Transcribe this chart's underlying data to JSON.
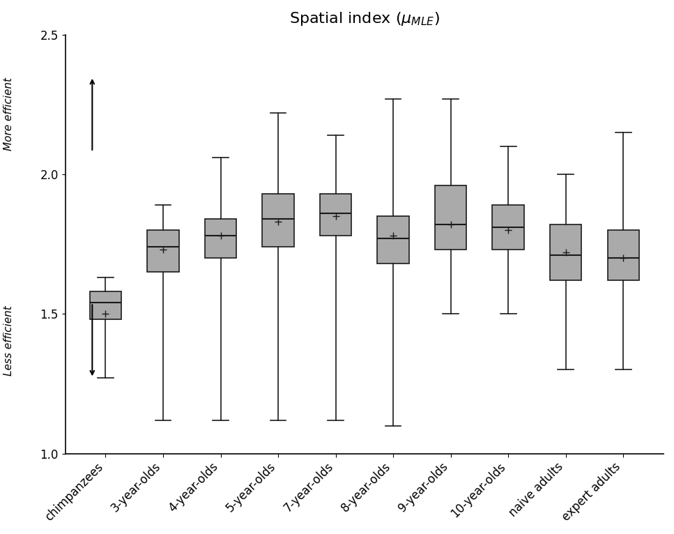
{
  "title": "Spatial index ($\\mu_{MLE}$)",
  "categories": [
    "chimpanzees",
    "3-year-olds",
    "4-year-olds",
    "5-year-olds",
    "7-year-olds",
    "8-year-olds",
    "9-year-olds",
    "10-year-olds",
    "naive adults",
    "expert adults"
  ],
  "box_data": [
    {
      "whislo": 1.27,
      "q1": 1.48,
      "med": 1.54,
      "q3": 1.58,
      "whishi": 1.63,
      "mean": 1.5
    },
    {
      "whislo": 1.12,
      "q1": 1.65,
      "med": 1.74,
      "q3": 1.8,
      "whishi": 1.89,
      "mean": 1.73
    },
    {
      "whislo": 1.12,
      "q1": 1.7,
      "med": 1.78,
      "q3": 1.84,
      "whishi": 2.06,
      "mean": 1.78
    },
    {
      "whislo": 1.12,
      "q1": 1.74,
      "med": 1.84,
      "q3": 1.93,
      "whishi": 2.22,
      "mean": 1.83
    },
    {
      "whislo": 1.12,
      "q1": 1.78,
      "med": 1.86,
      "q3": 1.93,
      "whishi": 2.14,
      "mean": 1.85
    },
    {
      "whislo": 1.1,
      "q1": 1.68,
      "med": 1.77,
      "q3": 1.85,
      "whishi": 2.27,
      "mean": 1.78
    },
    {
      "whislo": 1.5,
      "q1": 1.73,
      "med": 1.82,
      "q3": 1.96,
      "whishi": 2.27,
      "mean": 1.82
    },
    {
      "whislo": 1.5,
      "q1": 1.73,
      "med": 1.81,
      "q3": 1.89,
      "whishi": 2.1,
      "mean": 1.8
    },
    {
      "whislo": 1.3,
      "q1": 1.62,
      "med": 1.71,
      "q3": 1.82,
      "whishi": 2.0,
      "mean": 1.72
    },
    {
      "whislo": 1.3,
      "q1": 1.62,
      "med": 1.7,
      "q3": 1.8,
      "whishi": 2.15,
      "mean": 1.7
    }
  ],
  "ylim": [
    1.0,
    2.5
  ],
  "yticks": [
    1.0,
    1.5,
    2.0,
    2.5
  ],
  "box_color": "#aaaaaa",
  "box_edge_color": "#1a1a1a",
  "median_color": "#1a1a1a",
  "whisker_color": "#1a1a1a",
  "mean_color": "#1a1a1a",
  "background_color": "#ffffff",
  "more_efficient_label": "More efficient",
  "less_efficient_label": "Less efficient",
  "title_fontsize": 16,
  "tick_fontsize": 12,
  "label_fontsize": 11
}
